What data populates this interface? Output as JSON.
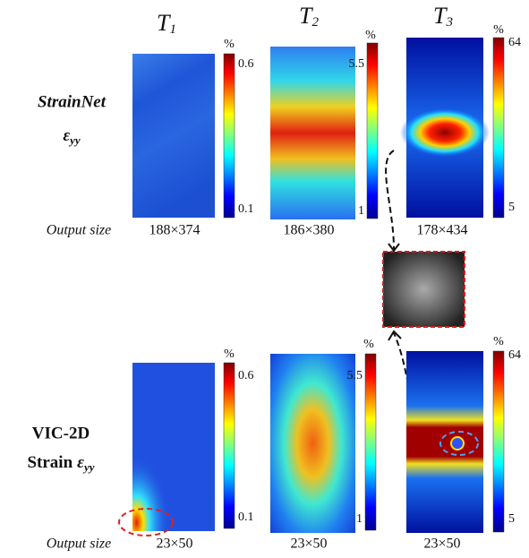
{
  "columns": [
    {
      "symbol": "T",
      "index": "1"
    },
    {
      "symbol": "T",
      "index": "2"
    },
    {
      "symbol": "T",
      "index": "3"
    }
  ],
  "rows": [
    {
      "label": {
        "name": "StrainNet",
        "symbol": "ε",
        "index": "yy"
      },
      "output_label": "Output size",
      "output_sizes": [
        "188×374",
        "186×380",
        "178×434"
      ],
      "colorbars": [
        {
          "unit": "%",
          "max": "0.6",
          "min": "0.1"
        },
        {
          "unit": "%",
          "max": "5.5",
          "min": "1"
        },
        {
          "unit": "%",
          "max": "64",
          "min": "5"
        }
      ]
    },
    {
      "label": {
        "name": "VIC-2D",
        "prefix": "Strain",
        "symbol": "ε",
        "index": "yy"
      },
      "output_label": "Output size",
      "output_sizes": [
        "23×50",
        "23×50",
        "23×50"
      ],
      "colorbars": [
        {
          "unit": "%",
          "max": "0.6",
          "min": "0.1"
        },
        {
          "unit": "%",
          "max": "5.5",
          "min": "1"
        },
        {
          "unit": "%",
          "max": "64",
          "min": "5"
        }
      ]
    }
  ]
}
